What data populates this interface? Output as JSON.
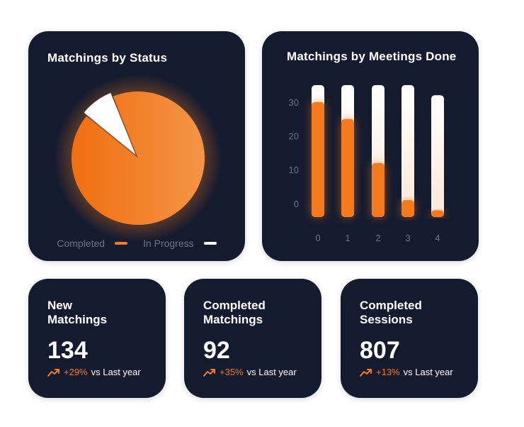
{
  "colors": {
    "accent": "#f47a20",
    "card_bg": "#151b2e",
    "muted": "#6b7388",
    "track": "#ffffff"
  },
  "chart_data": [
    {
      "type": "pie",
      "title": "Matchings by Status",
      "labels": [
        "Completed",
        "In Progress"
      ],
      "values": [
        92,
        8
      ],
      "colors": [
        "#f47a20",
        "#ffffff"
      ],
      "legend": "bottom"
    },
    {
      "type": "bar",
      "title": "Matchings by Meetings Done",
      "categories": [
        "0",
        "1",
        "2",
        "3",
        "4"
      ],
      "values": [
        30,
        25,
        12,
        1,
        -2
      ],
      "background_values": [
        35,
        35,
        35,
        35,
        32
      ],
      "yticks": [
        30,
        20,
        10,
        0
      ],
      "ylim": [
        -4,
        35
      ],
      "grid": false
    }
  ],
  "stats": [
    {
      "label": "New\nMatchings",
      "value": "134",
      "pct": "+29%",
      "suffix": "vs Last year"
    },
    {
      "label": "Completed\nMatchings",
      "value": "92",
      "pct": "+35%",
      "suffix": "vs Last year"
    },
    {
      "label": "Completed\nSessions",
      "value": "807",
      "pct": "+13%",
      "suffix": "vs Last year"
    }
  ]
}
